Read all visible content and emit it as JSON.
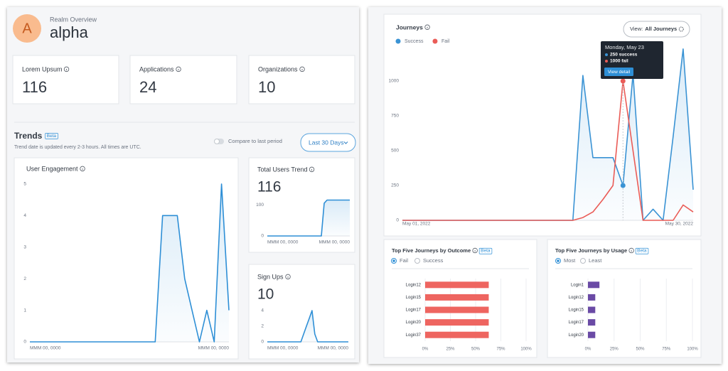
{
  "header": {
    "avatar": "A",
    "subtitle": "Realm Overview",
    "title": "alpha"
  },
  "cards": [
    {
      "label": "Lorem Upsum",
      "value": 116
    },
    {
      "label": "Applications",
      "value": 24
    },
    {
      "label": "Organizations",
      "value": 10
    }
  ],
  "trends": {
    "title": "Trends",
    "badge": "Beta",
    "note": "Trend date is updated every 2-3 hours. All times are UTC.",
    "toggle": "Compare to last period",
    "button": "Last 30 Days"
  },
  "chart_data": [
    {
      "type": "line",
      "title": "User Engagement",
      "color": "#2e8fd6",
      "categories": [
        "MMM 00, 0000",
        null,
        null,
        null,
        null,
        null,
        null,
        null,
        null,
        null,
        null,
        null,
        null,
        null,
        null,
        null,
        null,
        null,
        null,
        null,
        null,
        null,
        null,
        null,
        null,
        null,
        null,
        "MMM 00, 0000"
      ],
      "values": [
        0,
        0,
        0,
        0,
        0,
        0,
        0,
        0,
        0,
        0,
        0,
        0,
        0,
        0,
        0,
        0,
        0,
        0,
        4,
        4,
        4,
        2,
        1,
        0,
        1,
        0,
        5,
        1
      ],
      "ylim": [
        0,
        5.2
      ],
      "yticks": [
        0,
        1,
        2,
        3,
        4,
        5
      ],
      "grid": false
    },
    {
      "type": "line",
      "title": "Total Users Trend",
      "big_value": 116,
      "color": "#2e8fd6",
      "categories": [
        "MMM 00, 0000",
        null,
        null,
        null,
        null,
        null,
        null,
        null,
        null,
        null,
        null,
        null,
        null,
        null,
        null,
        null,
        null,
        null,
        null,
        null,
        null,
        null,
        null,
        null,
        null,
        null,
        null,
        null,
        null,
        "MMM 00, 0000"
      ],
      "values": [
        0,
        0,
        0,
        0,
        0,
        0,
        0,
        0,
        0,
        0,
        0,
        0,
        0,
        0,
        0,
        0,
        0,
        0,
        0,
        0,
        105,
        115,
        115,
        115,
        115,
        115,
        115,
        115,
        115,
        115
      ],
      "ylim": [
        0,
        123
      ],
      "yticks": [
        0,
        100
      ],
      "grid": false
    },
    {
      "type": "line",
      "title": "Sign Ups",
      "big_value": 10,
      "color": "#2e8fd6",
      "categories": [
        "MMM 00, 0000",
        null,
        null,
        null,
        null,
        null,
        null,
        null,
        null,
        null,
        null,
        null,
        null,
        null,
        null,
        null,
        null,
        null,
        null,
        null,
        null,
        null,
        null,
        null,
        null,
        null,
        null,
        null,
        null,
        "MMM 00, 0000"
      ],
      "values": [
        0,
        0,
        0,
        0,
        0,
        0,
        0,
        0,
        0,
        0,
        0,
        0,
        0,
        1,
        2,
        3,
        4,
        1,
        0,
        0,
        0,
        0,
        0,
        0,
        0,
        0,
        0,
        0,
        0,
        0
      ],
      "ylim": [
        0,
        5
      ],
      "yticks": [
        0,
        2,
        4
      ],
      "grid": false
    },
    {
      "type": "line",
      "title": "Journeys",
      "view_label": "View:",
      "view_value": "All Journeys",
      "categories": [
        "May 01, 2022",
        null,
        null,
        null,
        null,
        null,
        null,
        null,
        null,
        null,
        null,
        null,
        null,
        null,
        null,
        null,
        null,
        null,
        null,
        null,
        null,
        null,
        null,
        null,
        null,
        null,
        null,
        null,
        null,
        "May 30, 2022"
      ],
      "series": [
        {
          "name": "Success",
          "color": "#3a93d4",
          "values": [
            0,
            0,
            0,
            0,
            0,
            0,
            0,
            0,
            0,
            0,
            0,
            0,
            0,
            0,
            0,
            0,
            0,
            0,
            1040,
            450,
            450,
            450,
            250,
            1050,
            0,
            80,
            0,
            600,
            1230,
            220
          ]
        },
        {
          "name": "Fail",
          "color": "#ea5c57",
          "values": [
            0,
            0,
            0,
            0,
            0,
            0,
            0,
            0,
            0,
            0,
            0,
            0,
            0,
            0,
            0,
            0,
            0,
            0,
            20,
            60,
            150,
            250,
            1000,
            500,
            0,
            0,
            0,
            0,
            110,
            60
          ]
        }
      ],
      "ylim": [
        0,
        1250
      ],
      "yticks": [
        0,
        250,
        500,
        750,
        1000
      ],
      "grid": false,
      "tooltip": {
        "title": "Monday, May 23",
        "lines": [
          "250 success",
          "1000 fail"
        ],
        "button": "View detail"
      }
    },
    {
      "type": "hbar",
      "title": "Top Five Journeys by Outcome",
      "badge": "Beta",
      "options": [
        "Fail",
        "Success"
      ],
      "color": "#ee6560",
      "categories": [
        "Login12",
        "Login15",
        "Login17",
        "Login20",
        "Login37"
      ],
      "values": [
        63,
        63,
        63,
        63,
        63
      ],
      "xlim": [
        0,
        100
      ],
      "xticks": [
        {
          "value": 0,
          "label": "0%"
        },
        {
          "value": 25,
          "label": "25%"
        },
        {
          "value": 50,
          "label": "50%"
        },
        {
          "value": 75,
          "label": "75%"
        },
        {
          "value": 100,
          "label": "100%"
        }
      ],
      "grid": true
    },
    {
      "type": "hbar",
      "title": "Top Five Journeys by Usage",
      "badge": "Beta",
      "options": [
        "Most",
        "Least"
      ],
      "color": "#6a4aa5",
      "categories": [
        "Login1",
        "Login12",
        "Login15",
        "Login17",
        "Login20"
      ],
      "values": [
        11,
        7,
        7,
        7,
        7
      ],
      "xlim": [
        0,
        100
      ],
      "xticks": [
        {
          "value": 0,
          "label": "0%"
        },
        {
          "value": 25,
          "label": "25%"
        },
        {
          "value": 50,
          "label": "50%"
        },
        {
          "value": 75,
          "label": "75%"
        },
        {
          "value": 100,
          "label": "100%"
        }
      ],
      "grid": true
    }
  ]
}
